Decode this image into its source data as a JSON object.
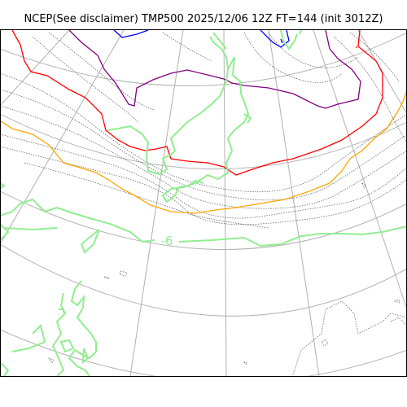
{
  "title": "NCEP(See disclaimer) TMP500 2025/12/06 12Z FT=144 (init 3012Z)",
  "contour_label": "-6",
  "colors": {
    "grid": "#b0b0b0",
    "coast": "#555555",
    "blue": "#0000ff",
    "purple": "#800080",
    "red": "#ff0000",
    "orange": "#ffa500",
    "green": "#90ee90",
    "frame": "#000000"
  }
}
